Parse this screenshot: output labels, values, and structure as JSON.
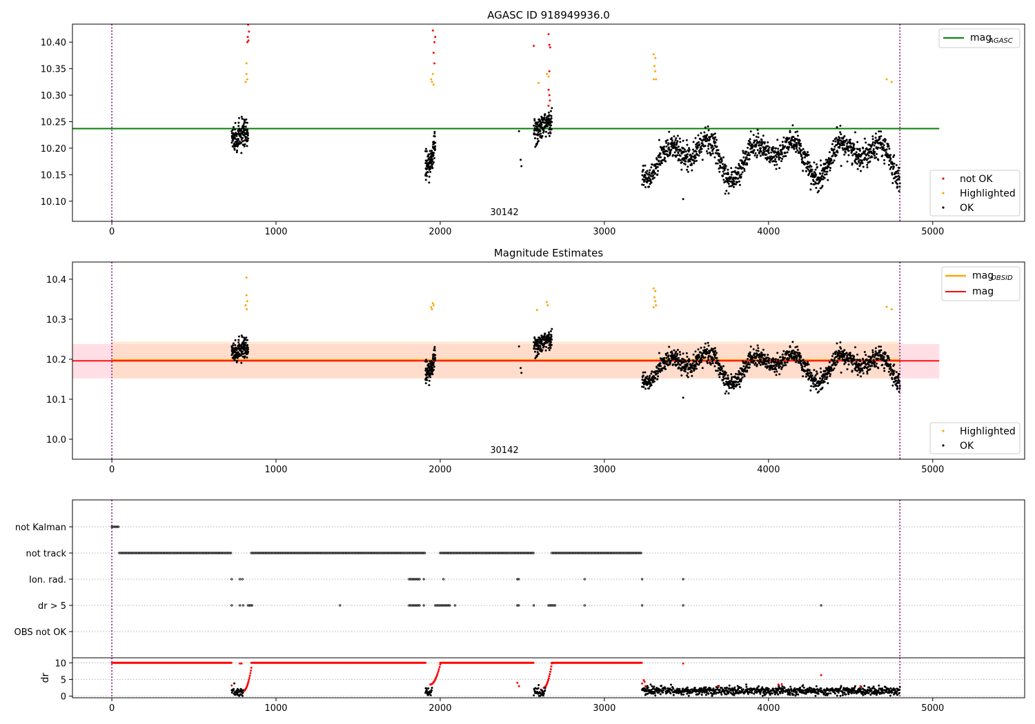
{
  "colors": {
    "ok": "#000000",
    "highlighted": "#ffa500",
    "not_ok": "#ff0000",
    "agasc_line": "#008000",
    "obsid_line": "#ffa500",
    "mag_line": "#ff0000",
    "band_outer": "#ffc0cb",
    "band_inner": "#ffdab9",
    "vline": "#800080",
    "grid": "#b0b0b0"
  },
  "chart_data": [
    {
      "id": "agasc",
      "type": "scatter",
      "title": "AGASC ID 918949936.0",
      "xlabel": "",
      "ylabel": "",
      "xlim": [
        -240,
        5560
      ],
      "ylim": [
        10.062,
        10.434
      ],
      "xticks": [
        0,
        1000,
        2000,
        3000,
        4000,
        5000
      ],
      "xtick_labels": [
        "0",
        "1000",
        "2000",
        "3000",
        "4000",
        "5000"
      ],
      "yticks": [
        10.1,
        10.15,
        10.2,
        10.25,
        10.3,
        10.35,
        10.4
      ],
      "ytick_labels": [
        "10.10",
        "10.15",
        "10.20",
        "10.25",
        "10.30",
        "10.35",
        "10.40"
      ],
      "hline": {
        "y": 10.237,
        "x": [
          -240,
          5040
        ],
        "name": "mag_AGASC",
        "legend_main": "mag",
        "legend_sub": "AGASC"
      },
      "vlines": [
        0,
        4800
      ],
      "obsid_label": {
        "text": "30142",
        "x": 2400
      },
      "legend_top": "top-right",
      "legend_bottom": [
        {
          "label": "not OK",
          "kind": "not_ok"
        },
        {
          "label": "Highlighted",
          "kind": "highlighted"
        },
        {
          "label": "OK",
          "kind": "ok"
        }
      ],
      "segments": [
        {
          "x": [
            730,
            830
          ],
          "base": 10.225,
          "amp": 0.02,
          "noise": 0.022,
          "n": 150
        },
        {
          "x": [
            1910,
            1970
          ],
          "base": 10.215,
          "amp": 0.06,
          "noise": 0.02,
          "n": 110
        },
        {
          "x": [
            2570,
            2680
          ],
          "base": 10.235,
          "amp": 0.04,
          "noise": 0.02,
          "n": 140
        },
        {
          "x": [
            3230,
            4800
          ],
          "base": 10.185,
          "amp": 0.045,
          "noise": 0.02,
          "n": 1300
        }
      ],
      "extra_points": [
        [
          2480,
          10.232
        ],
        [
          2490,
          10.178
        ],
        [
          2495,
          10.166
        ],
        [
          3480,
          10.104
        ]
      ],
      "highlighted": [
        [
          820,
          10.36
        ],
        [
          820,
          10.34
        ],
        [
          825,
          10.33
        ],
        [
          815,
          10.325
        ],
        [
          1945,
          10.33
        ],
        [
          1955,
          10.34
        ],
        [
          1960,
          10.32
        ],
        [
          1950,
          10.325
        ],
        [
          2600,
          10.323
        ],
        [
          2650,
          10.34
        ],
        [
          2660,
          10.335
        ],
        [
          3300,
          10.377
        ],
        [
          3310,
          10.37
        ],
        [
          3305,
          10.355
        ],
        [
          3310,
          10.345
        ],
        [
          3300,
          10.33
        ],
        [
          3315,
          10.33
        ],
        [
          4720,
          10.33
        ],
        [
          4750,
          10.325
        ]
      ],
      "not_ok": [
        [
          830,
          10.433
        ],
        [
          835,
          10.42
        ],
        [
          828,
          10.41
        ],
        [
          825,
          10.4
        ],
        [
          832,
          10.403
        ],
        [
          1955,
          10.422
        ],
        [
          1970,
          10.41
        ],
        [
          1965,
          10.4
        ],
        [
          1960,
          10.38
        ],
        [
          1965,
          10.36
        ],
        [
          2570,
          10.393
        ],
        [
          2660,
          10.415
        ],
        [
          2665,
          10.395
        ],
        [
          2670,
          10.39
        ],
        [
          2665,
          10.345
        ],
        [
          2660,
          10.31
        ],
        [
          2665,
          10.3
        ],
        [
          2668,
          10.29
        ],
        [
          2660,
          10.28
        ]
      ]
    },
    {
      "id": "estimates",
      "type": "scatter",
      "title": "Magnitude Estimates",
      "xlabel": "",
      "ylabel": "",
      "xlim": [
        -240,
        5560
      ],
      "ylim": [
        9.95,
        10.443
      ],
      "xticks": [
        0,
        1000,
        2000,
        3000,
        4000,
        5000
      ],
      "xtick_labels": [
        "0",
        "1000",
        "2000",
        "3000",
        "4000",
        "5000"
      ],
      "yticks": [
        10.0,
        10.1,
        10.2,
        10.3,
        10.4
      ],
      "ytick_labels": [
        "10.0",
        "10.1",
        "10.2",
        "10.3",
        "10.4"
      ],
      "mag": {
        "y": 10.196,
        "band_outer": [
          10.152,
          10.238
        ],
        "x": [
          -240,
          5040
        ]
      },
      "mag_obsid": {
        "y": 10.198,
        "band": [
          10.152,
          10.244
        ],
        "x": [
          0,
          4800
        ]
      },
      "vlines": [
        0,
        4800
      ],
      "obsid_label": {
        "text": "30142",
        "x": 2400
      },
      "legend_top": [
        {
          "main": "mag",
          "sub": "OBSID",
          "kind": "obsid_line"
        },
        {
          "main": "mag",
          "sub": "",
          "kind": "mag_line"
        }
      ],
      "legend_bottom": [
        {
          "label": "Highlighted",
          "kind": "highlighted"
        },
        {
          "label": "OK",
          "kind": "ok"
        }
      ],
      "segments": [
        {
          "x": [
            730,
            830
          ],
          "base": 10.225,
          "amp": 0.02,
          "noise": 0.022,
          "n": 150
        },
        {
          "x": [
            1910,
            1970
          ],
          "base": 10.215,
          "amp": 0.06,
          "noise": 0.02,
          "n": 110
        },
        {
          "x": [
            2570,
            2680
          ],
          "base": 10.235,
          "amp": 0.04,
          "noise": 0.02,
          "n": 140
        },
        {
          "x": [
            3230,
            4800
          ],
          "base": 10.185,
          "amp": 0.045,
          "noise": 0.02,
          "n": 1300
        }
      ],
      "extra_points": [
        [
          2480,
          10.232
        ],
        [
          2490,
          10.178
        ],
        [
          2495,
          10.166
        ],
        [
          3480,
          10.104
        ]
      ],
      "highlighted": [
        [
          820,
          10.404
        ],
        [
          820,
          10.36
        ],
        [
          825,
          10.345
        ],
        [
          815,
          10.335
        ],
        [
          822,
          10.325
        ],
        [
          1945,
          10.33
        ],
        [
          1955,
          10.34
        ],
        [
          1960,
          10.335
        ],
        [
          1950,
          10.325
        ],
        [
          2590,
          10.323
        ],
        [
          2650,
          10.343
        ],
        [
          2655,
          10.335
        ],
        [
          3300,
          10.377
        ],
        [
          3310,
          10.37
        ],
        [
          3305,
          10.355
        ],
        [
          3310,
          10.345
        ],
        [
          3300,
          10.33
        ],
        [
          3315,
          10.335
        ],
        [
          4720,
          10.331
        ],
        [
          4750,
          10.325
        ]
      ]
    },
    {
      "id": "flags",
      "type": "scatter",
      "title": "",
      "xlabel": "",
      "ylabel": "",
      "xlim": [
        -240,
        5560
      ],
      "categories": [
        "not Kalman",
        "not track",
        "Ion. rad.",
        "dr > 5",
        "OBS not OK"
      ],
      "rows": [
        {
          "label": "not Kalman",
          "ranges": [
            [
              0,
              45
            ]
          ],
          "points": []
        },
        {
          "label": "not track",
          "ranges": [
            [
              45,
              730
            ],
            [
              850,
              1910
            ],
            [
              2000,
              2570
            ],
            [
              2680,
              3230
            ]
          ],
          "points": []
        },
        {
          "label": "Ion. rad.",
          "ranges": [
            [
              1810,
              1880
            ],
            [
              2470,
              2480
            ]
          ],
          "points": [
            730,
            780,
            795,
            1900,
            2020,
            2880,
            3230,
            3480
          ]
        },
        {
          "label": "dr > 5",
          "ranges": [
            [
              830,
              860
            ],
            [
              1810,
              1880
            ],
            [
              1970,
              2060
            ],
            [
              2470,
              2480
            ],
            [
              2660,
              2700
            ]
          ],
          "points": [
            730,
            780,
            800,
            1390,
            1900,
            2090,
            2570,
            2880,
            3230,
            3480,
            4320
          ]
        },
        {
          "label": "OBS not OK",
          "ranges": [],
          "points": []
        }
      ],
      "vlines": [
        0,
        4800
      ]
    },
    {
      "id": "dr",
      "type": "scatter",
      "title": "",
      "xlabel": "",
      "ylabel": "dr",
      "xlim": [
        -240,
        5560
      ],
      "ylim": [
        -0.5,
        11.5
      ],
      "xticks": [
        0,
        1000,
        2000,
        3000,
        4000,
        5000
      ],
      "xtick_labels": [
        "0",
        "1000",
        "2000",
        "3000",
        "4000",
        "5000"
      ],
      "yticks": [
        0,
        5,
        10
      ],
      "ytick_labels": [
        "0",
        "5",
        "10"
      ],
      "capped_ranges": [
        [
          0,
          730
        ],
        [
          850,
          1910
        ],
        [
          2000,
          2570
        ],
        [
          2680,
          3230
        ]
      ],
      "cap_value": 10,
      "ramps": [
        [
          800,
          850,
          1.5,
          8.5
        ],
        [
          1940,
          2000,
          3.5,
          9.5
        ],
        [
          2630,
          2680,
          2.5,
          9.8
        ]
      ],
      "black_segments": [
        {
          "x": [
            730,
            800
          ],
          "mean": 1.3,
          "spread": 1.6
        },
        {
          "x": [
            1910,
            1950
          ],
          "mean": 1.3,
          "spread": 1.4
        },
        {
          "x": [
            2570,
            2640
          ],
          "mean": 1.2,
          "spread": 1.5
        },
        {
          "x": [
            3230,
            4800
          ],
          "mean": 1.6,
          "spread": 1.4
        }
      ],
      "red_points": [
        [
          730,
          3.2
        ],
        [
          780,
          9.8
        ],
        [
          790,
          9.8
        ],
        [
          2470,
          4.0
        ],
        [
          2480,
          3.0
        ],
        [
          3230,
          3.8
        ],
        [
          3240,
          4.8
        ],
        [
          3245,
          4.3
        ],
        [
          3250,
          3.0
        ],
        [
          3480,
          9.8
        ],
        [
          3690,
          3.0
        ],
        [
          4060,
          3.5
        ],
        [
          4080,
          3.6
        ],
        [
          4320,
          6.3
        ],
        [
          4560,
          3.0
        ]
      ],
      "vlines": [
        0,
        4800
      ]
    }
  ]
}
